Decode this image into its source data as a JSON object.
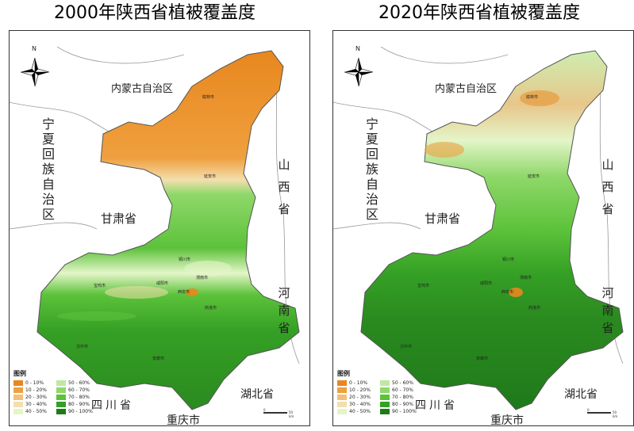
{
  "maps": [
    {
      "title": "2000年陕西省植被覆盖度",
      "year": 2000,
      "provincial_labels": {
        "inner_mongolia": "内蒙古自治区",
        "ningxia": "宁夏回族自治区",
        "gansu": "甘肃省",
        "shanxi": "山西省",
        "henan": "河南省",
        "sichuan": "四川省",
        "hubei": "湖北省",
        "chongqing": "重庆市"
      },
      "cities": {
        "yulin": "榆林市",
        "yanan": "延安市",
        "tongchuan": "铜川市",
        "baoji": "宝鸡市",
        "xianyang": "咸阳市",
        "weinan": "渭南市",
        "xian": "西安市",
        "shangluo": "商洛市",
        "hanzhong": "汉中市",
        "ankang": "安康市"
      },
      "scale": {
        "start": "0",
        "end": "50 km"
      },
      "coverage_bands": [
        {
          "range": "north",
          "class": "0 - 10%"
        },
        {
          "range": "central",
          "class": "40 - 50%"
        },
        {
          "range": "south",
          "class": "80 - 90%"
        }
      ]
    },
    {
      "title": "2020年陕西省植被覆盖度",
      "year": 2020,
      "provincial_labels": {
        "inner_mongolia": "内蒙古自治区",
        "ningxia": "宁夏回族自治区",
        "gansu": "甘肃省",
        "shanxi": "山西省",
        "henan": "河南省",
        "sichuan": "四川省",
        "hubei": "湖北省",
        "chongqing": "重庆市"
      },
      "cities": {
        "yulin": "榆林市",
        "yanan": "延安市",
        "tongchuan": "铜川市",
        "baoji": "宝鸡市",
        "xianyang": "咸阳市",
        "weinan": "渭南市",
        "xian": "西安市",
        "shangluo": "商洛市",
        "hanzhong": "汉中市",
        "ankang": "安康市"
      },
      "scale": {
        "start": "0",
        "end": "50 km"
      },
      "coverage_bands": [
        {
          "range": "north",
          "class": "50 - 60%"
        },
        {
          "range": "central",
          "class": "70 - 80%"
        },
        {
          "range": "south",
          "class": "90 - 100%"
        }
      ]
    }
  ],
  "legend": {
    "title": "图例",
    "items": [
      {
        "label": "0 - 10%",
        "color": "#e8871e"
      },
      {
        "label": "10 - 20%",
        "color": "#efa03f"
      },
      {
        "label": "20 - 30%",
        "color": "#f2c07a"
      },
      {
        "label": "30 - 40%",
        "color": "#f3dfae"
      },
      {
        "label": "40 - 50%",
        "color": "#e4f5c8"
      },
      {
        "label": "50 - 60%",
        "color": "#bfe9a0"
      },
      {
        "label": "60 - 70%",
        "color": "#8fd86a"
      },
      {
        "label": "70 - 80%",
        "color": "#5cc23a"
      },
      {
        "label": "80 - 90%",
        "color": "#35a025"
      },
      {
        "label": "90 - 100%",
        "color": "#1f7a1a"
      }
    ]
  },
  "north_arrow": {
    "label": "N",
    "icon": "compass-rose-icon"
  },
  "colors": {
    "border": "#777777",
    "river": "#999999"
  }
}
